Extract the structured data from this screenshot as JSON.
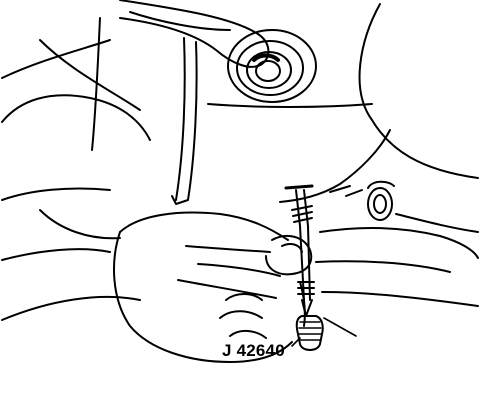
{
  "figure": {
    "tool_label": "J 42640",
    "line_color": "#000000",
    "background": "#ffffff"
  }
}
